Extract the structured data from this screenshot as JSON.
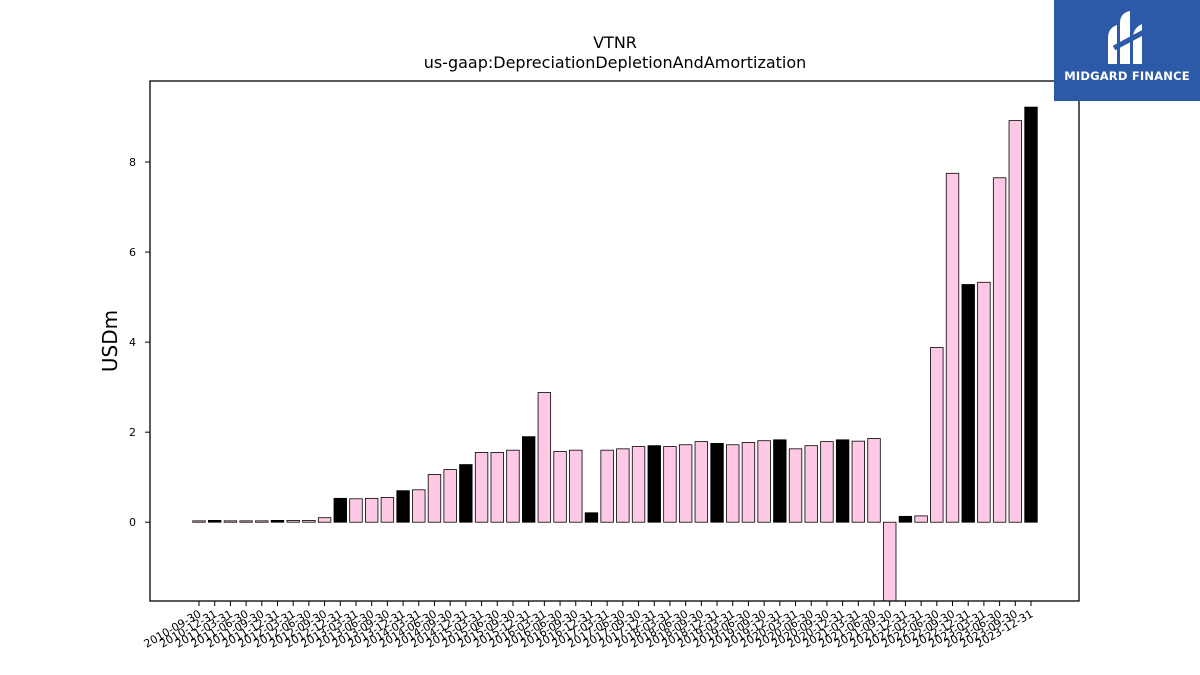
{
  "chart_data": {
    "type": "bar",
    "title": "VTNR",
    "subtitle": "us-gaap:DepreciationDepletionAndAmortization",
    "ylabel": "USDm",
    "xlabel": "",
    "ylim": [
      -1.75,
      9.8
    ],
    "yticks": [
      0,
      2,
      4,
      6,
      8
    ],
    "categories": [
      "2010-09-30",
      "2010-12-31",
      "2011-03-31",
      "2011-06-30",
      "2011-09-30",
      "2011-12-31",
      "2012-03-31",
      "2012-06-30",
      "2012-09-30",
      "2012-12-31",
      "2013-03-31",
      "2013-06-30",
      "2013-09-30",
      "2013-12-31",
      "2014-03-31",
      "2014-06-30",
      "2014-09-30",
      "2014-12-31",
      "2015-03-31",
      "2015-06-30",
      "2015-09-30",
      "2015-12-31",
      "2016-03-31",
      "2016-06-30",
      "2016-09-30",
      "2016-12-31",
      "2017-03-31",
      "2017-06-30",
      "2017-09-30",
      "2017-12-31",
      "2018-03-31",
      "2018-06-30",
      "2018-09-30",
      "2018-12-31",
      "2019-03-31",
      "2019-06-30",
      "2019-09-30",
      "2019-12-31",
      "2020-03-31",
      "2020-06-30",
      "2020-09-30",
      "2020-12-31",
      "2021-03-31",
      "2021-06-30",
      "2021-09-30",
      "2021-12-31",
      "2022-03-31",
      "2022-06-30",
      "2022-09-30",
      "2022-12-31",
      "2023-03-31",
      "2023-06-30",
      "2023-09-30",
      "2023-12-31"
    ],
    "values": [
      0.03,
      0.04,
      0.03,
      0.03,
      0.03,
      0.04,
      0.04,
      0.04,
      0.1,
      0.53,
      0.52,
      0.53,
      0.55,
      0.7,
      0.72,
      1.06,
      1.17,
      1.28,
      1.55,
      1.55,
      1.6,
      1.9,
      2.88,
      1.57,
      1.6,
      0.21,
      1.6,
      1.63,
      1.68,
      1.7,
      1.68,
      1.72,
      1.79,
      1.75,
      1.72,
      1.77,
      1.81,
      1.83,
      1.63,
      1.7,
      1.79,
      1.83,
      1.8,
      1.86,
      -2.2,
      0.13,
      0.14,
      3.88,
      7.75,
      5.28,
      5.33,
      7.65,
      8.92,
      9.22
    ],
    "highlighted": [
      false,
      true,
      false,
      false,
      false,
      true,
      false,
      false,
      false,
      true,
      false,
      false,
      false,
      true,
      false,
      false,
      false,
      true,
      false,
      false,
      false,
      true,
      false,
      false,
      false,
      true,
      false,
      false,
      false,
      true,
      false,
      false,
      false,
      true,
      false,
      false,
      false,
      true,
      false,
      false,
      false,
      true,
      false,
      false,
      false,
      true,
      false,
      false,
      false,
      true,
      false,
      false,
      false,
      true
    ],
    "colors": {
      "bar": "#ffc8e4",
      "highlight": "#000000",
      "edge": "#000000"
    },
    "grid": false,
    "legend": null
  },
  "logo": {
    "text": "MIDGARD FINANCE",
    "background": "#2c5aa8"
  }
}
